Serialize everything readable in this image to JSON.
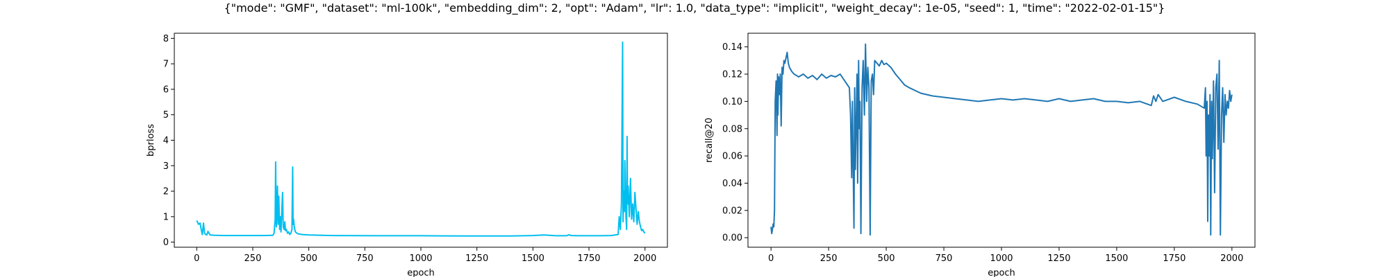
{
  "figure": {
    "title": "{\"mode\": \"GMF\", \"dataset\": \"ml-100k\", \"embedding_dim\": 2, \"opt\": \"Adam\", \"lr\": 1.0, \"data_type\": \"implicit\", \"weight_decay\": 1e-05, \"seed\": 1, \"time\": \"2022-02-01-15\"}"
  },
  "chart_data": [
    {
      "type": "line",
      "xlabel": "epoch",
      "ylabel": "bprloss",
      "xlim": [
        -100,
        2100
      ],
      "ylim": [
        -0.2,
        8.2
      ],
      "xticks": [
        0,
        250,
        500,
        750,
        1000,
        1250,
        1500,
        1750,
        2000
      ],
      "yticks": [
        0,
        1,
        2,
        3,
        4,
        5,
        6,
        7,
        8
      ],
      "grid": false,
      "line_color": "#00bfef",
      "series": [
        {
          "x": [
            0,
            8,
            15,
            20,
            25,
            30,
            35,
            40,
            45,
            50,
            60,
            80,
            120,
            200,
            300,
            340,
            345,
            350,
            352,
            355,
            358,
            360,
            363,
            366,
            370,
            373,
            376,
            380,
            383,
            386,
            390,
            393,
            396,
            400,
            405,
            410,
            415,
            420,
            425,
            428,
            430,
            432,
            435,
            440,
            450,
            470,
            500,
            600,
            800,
            1000,
            1200,
            1400,
            1500,
            1550,
            1600,
            1650,
            1660,
            1670,
            1700,
            1800,
            1850,
            1880,
            1885,
            1890,
            1895,
            1900,
            1902,
            1905,
            1908,
            1910,
            1915,
            1918,
            1920,
            1922,
            1925,
            1930,
            1935,
            1940,
            1945,
            1950,
            1955,
            1960,
            1965,
            1970,
            1975,
            1980,
            1985,
            1990,
            1995,
            2000
          ],
          "y": [
            0.85,
            0.7,
            0.75,
            0.5,
            0.3,
            0.75,
            0.35,
            0.3,
            0.28,
            0.42,
            0.28,
            0.27,
            0.26,
            0.26,
            0.26,
            0.27,
            0.35,
            0.9,
            3.15,
            0.6,
            1.2,
            2.2,
            0.7,
            1.8,
            0.5,
            1.0,
            0.4,
            1.3,
            1.95,
            0.6,
            0.5,
            0.8,
            0.45,
            0.5,
            0.35,
            0.4,
            0.3,
            0.35,
            0.5,
            2.95,
            0.7,
            0.9,
            0.6,
            0.4,
            0.33,
            0.3,
            0.28,
            0.26,
            0.25,
            0.25,
            0.24,
            0.24,
            0.26,
            0.28,
            0.25,
            0.25,
            0.29,
            0.26,
            0.25,
            0.25,
            0.26,
            0.3,
            1.0,
            0.5,
            1.5,
            7.85,
            0.8,
            2.0,
            1.2,
            3.2,
            1.0,
            0.5,
            4.15,
            1.5,
            2.2,
            1.0,
            2.5,
            0.9,
            1.5,
            0.8,
            1.95,
            1.3,
            0.7,
            1.2,
            0.8,
            0.6,
            0.45,
            0.5,
            0.4,
            0.35
          ]
        }
      ]
    },
    {
      "type": "line",
      "xlabel": "epoch",
      "ylabel": "recall@20",
      "xlim": [
        -100,
        2100
      ],
      "ylim": [
        -0.007,
        0.15
      ],
      "xticks": [
        0,
        250,
        500,
        750,
        1000,
        1250,
        1500,
        1750,
        2000
      ],
      "yticks": [
        0.0,
        0.02,
        0.04,
        0.06,
        0.08,
        0.1,
        0.12,
        0.14
      ],
      "ytick_labels": [
        "0.00",
        "0.02",
        "0.04",
        "0.06",
        "0.08",
        "0.10",
        "0.12",
        "0.14"
      ],
      "grid": false,
      "line_color": "#1f77b4",
      "series": [
        {
          "x": [
            0,
            3,
            6,
            9,
            12,
            15,
            18,
            22,
            26,
            28,
            30,
            33,
            36,
            40,
            44,
            48,
            52,
            56,
            60,
            65,
            70,
            75,
            80,
            90,
            100,
            120,
            140,
            160,
            180,
            200,
            220,
            240,
            260,
            280,
            300,
            320,
            340,
            345,
            350,
            353,
            356,
            360,
            363,
            366,
            370,
            373,
            376,
            380,
            383,
            386,
            390,
            395,
            400,
            405,
            410,
            415,
            420,
            425,
            430,
            435,
            440,
            445,
            450,
            460,
            470,
            480,
            490,
            500,
            520,
            540,
            560,
            580,
            600,
            650,
            700,
            750,
            800,
            850,
            900,
            950,
            1000,
            1050,
            1100,
            1150,
            1200,
            1250,
            1300,
            1350,
            1400,
            1450,
            1500,
            1550,
            1600,
            1650,
            1660,
            1670,
            1680,
            1700,
            1750,
            1800,
            1850,
            1880,
            1885,
            1888,
            1892,
            1895,
            1898,
            1902,
            1905,
            1908,
            1912,
            1915,
            1920,
            1925,
            1930,
            1935,
            1940,
            1945,
            1950,
            1955,
            1960,
            1965,
            1970,
            1975,
            1980,
            1985,
            1990,
            1995,
            2000
          ],
          "y": [
            0.008,
            0.003,
            0.006,
            0.01,
            0.008,
            0.02,
            0.1,
            0.115,
            0.075,
            0.12,
            0.09,
            0.118,
            0.105,
            0.12,
            0.082,
            0.125,
            0.12,
            0.13,
            0.128,
            0.132,
            0.136,
            0.128,
            0.125,
            0.122,
            0.12,
            0.118,
            0.12,
            0.117,
            0.119,
            0.116,
            0.12,
            0.117,
            0.119,
            0.118,
            0.12,
            0.115,
            0.11,
            0.09,
            0.044,
            0.1,
            0.06,
            0.007,
            0.11,
            0.05,
            0.09,
            0.12,
            0.04,
            0.13,
            0.08,
            0.1,
            0.003,
            0.11,
            0.13,
            0.09,
            0.142,
            0.1,
            0.125,
            0.11,
            0.002,
            0.115,
            0.12,
            0.105,
            0.13,
            0.128,
            0.126,
            0.13,
            0.127,
            0.128,
            0.125,
            0.12,
            0.116,
            0.112,
            0.11,
            0.106,
            0.104,
            0.103,
            0.102,
            0.101,
            0.1,
            0.101,
            0.102,
            0.101,
            0.102,
            0.101,
            0.1,
            0.102,
            0.1,
            0.101,
            0.102,
            0.1,
            0.1,
            0.099,
            0.1,
            0.097,
            0.104,
            0.1,
            0.105,
            0.1,
            0.103,
            0.1,
            0.098,
            0.095,
            0.11,
            0.06,
            0.1,
            0.012,
            0.09,
            0.06,
            0.105,
            0.002,
            0.1,
            0.058,
            0.115,
            0.033,
            0.11,
            0.12,
            0.065,
            0.13,
            0.002,
            0.09,
            0.11,
            0.07,
            0.105,
            0.09,
            0.1,
            0.095,
            0.108,
            0.1,
            0.105
          ]
        }
      ]
    }
  ]
}
